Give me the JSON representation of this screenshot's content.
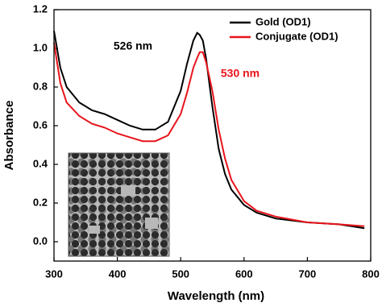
{
  "chart_data": {
    "type": "line",
    "x_label": "Wavelength (nm)",
    "y_label": "Absorbance",
    "x": [
      300,
      310,
      320,
      340,
      360,
      380,
      400,
      420,
      440,
      460,
      480,
      500,
      510,
      520,
      526,
      530,
      535,
      540,
      550,
      560,
      570,
      580,
      600,
      620,
      650,
      700,
      750,
      790
    ],
    "series": [
      {
        "name": "Gold (OD1)",
        "color": "#000000",
        "values": [
          1.09,
          0.9,
          0.8,
          0.72,
          0.68,
          0.66,
          0.63,
          0.6,
          0.58,
          0.58,
          0.62,
          0.78,
          0.92,
          1.04,
          1.08,
          1.07,
          1.04,
          0.95,
          0.7,
          0.48,
          0.35,
          0.27,
          0.19,
          0.15,
          0.12,
          0.1,
          0.09,
          0.07
        ]
      },
      {
        "name": "Conjugate (OD1)",
        "color": "#e8141b",
        "values": [
          1.03,
          0.82,
          0.72,
          0.65,
          0.61,
          0.59,
          0.56,
          0.54,
          0.52,
          0.52,
          0.55,
          0.66,
          0.77,
          0.9,
          0.95,
          0.98,
          0.98,
          0.93,
          0.78,
          0.58,
          0.43,
          0.32,
          0.21,
          0.16,
          0.13,
          0.1,
          0.09,
          0.08
        ]
      }
    ],
    "annotations": [
      "526 nm",
      "530 nm"
    ],
    "xlim": [
      300,
      800
    ],
    "xticks": [
      300,
      400,
      500,
      600,
      700,
      800
    ],
    "ylim": [
      -0.1,
      1.2
    ],
    "yticks": [
      {
        "value": 0,
        "label": "0.0"
      },
      0.2,
      0.4,
      0.6,
      0.8,
      {
        "value": 1,
        "label": "1.0"
      },
      1.2
    ],
    "legend": "upper right"
  }
}
